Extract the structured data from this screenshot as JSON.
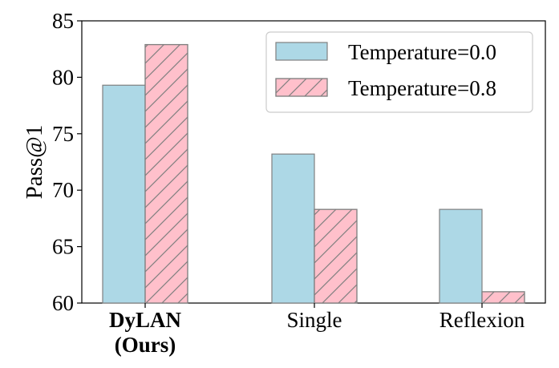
{
  "chart_data": {
    "type": "bar",
    "categories": [
      {
        "lines": [
          "DyLAN",
          "(Ours)"
        ],
        "bold": true
      },
      {
        "lines": [
          "Single"
        ],
        "bold": false
      },
      {
        "lines": [
          "Reflexion"
        ],
        "bold": false
      }
    ],
    "series": [
      {
        "name": "Temperature=0.0",
        "values": [
          79.3,
          73.2,
          68.3
        ],
        "color": "#add8e6",
        "hatch": false
      },
      {
        "name": "Temperature=0.8",
        "values": [
          82.9,
          68.3,
          61.0
        ],
        "color": "#ffc0cb",
        "hatch": true
      }
    ],
    "xlabel": "",
    "ylabel": "Pass@1",
    "ylim": [
      60,
      85
    ],
    "yticks": [
      60,
      65,
      70,
      75,
      80,
      85
    ],
    "grid": false,
    "legend": "top-right",
    "edge_color": "#808080"
  }
}
